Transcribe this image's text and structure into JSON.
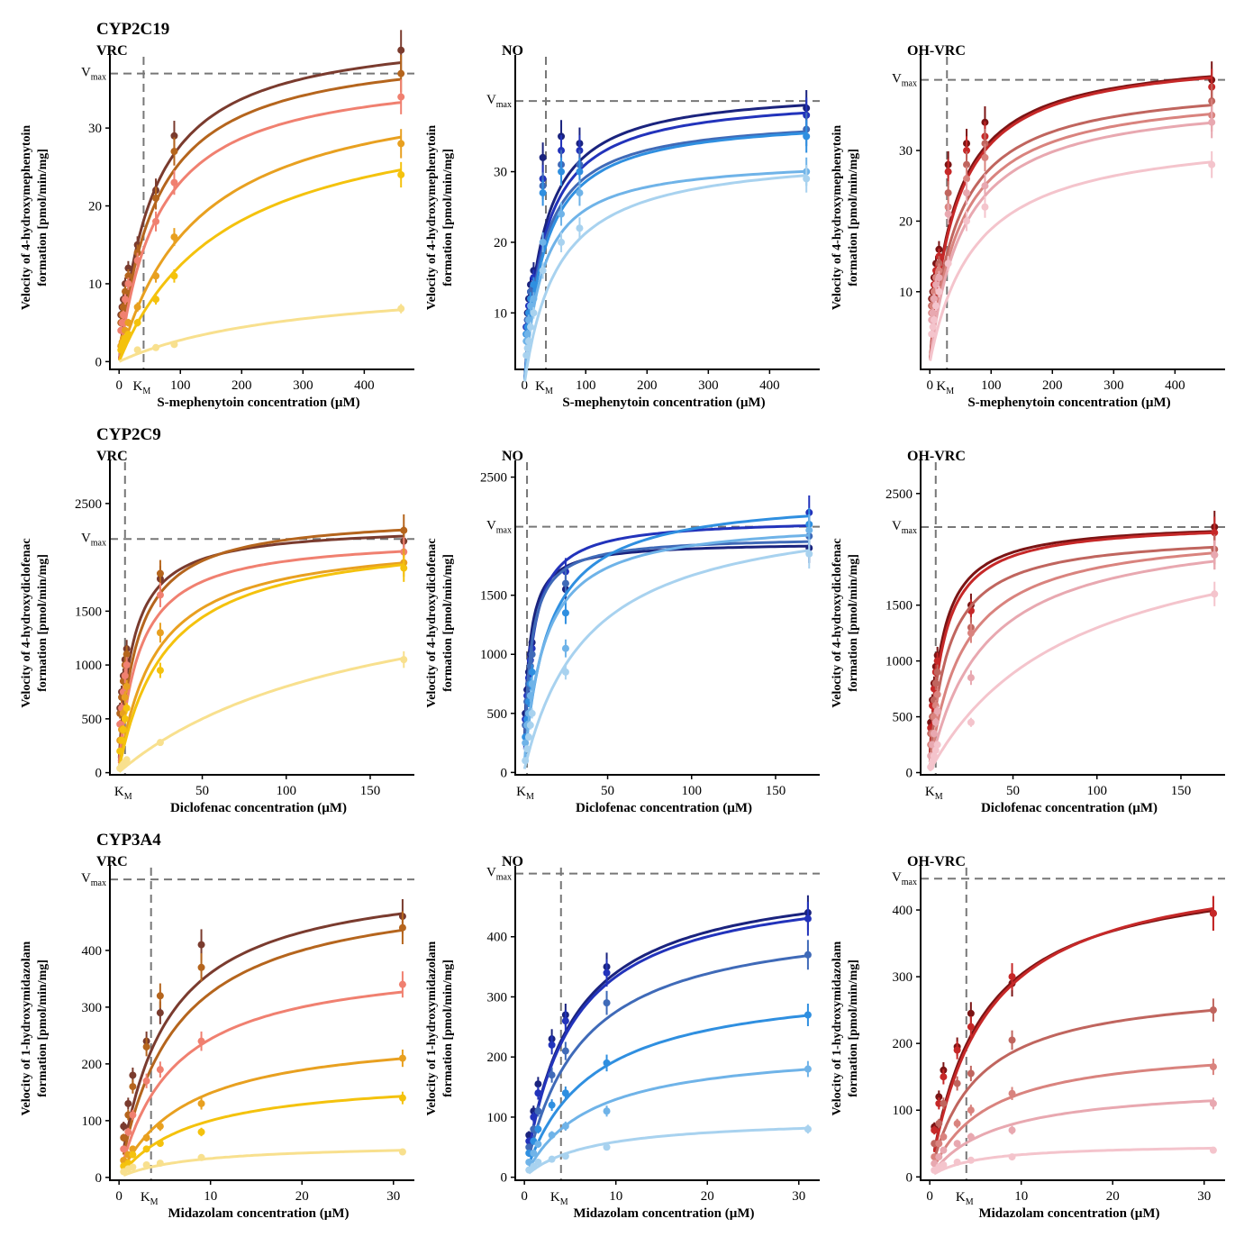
{
  "figure": {
    "row_titles": [
      "CYP2C19",
      "CYP2C9",
      "CYP3A4"
    ],
    "vmax_label": {
      "main": "V",
      "sub": "max"
    },
    "km_label": {
      "main": "K",
      "sub": "M"
    }
  },
  "colors": {
    "VRC": [
      "#7a3b2e",
      "#b5651d",
      "#f08070",
      "#e8a020",
      "#f4c20d",
      "#f8e08e"
    ],
    "NO": [
      "#1a237e",
      "#2233bb",
      "#3f6ab8",
      "#2f8fe0",
      "#6fb3e8",
      "#a8d2ef"
    ],
    "OH-VRC": [
      "#7b1414",
      "#c62828",
      "#c0655e",
      "#d9837e",
      "#e8a8b0",
      "#f4c4cc"
    ]
  },
  "chart_data": [
    {
      "type": "line",
      "id": "c19-vrc",
      "row": 0,
      "col": 0,
      "title": "VRC",
      "inhibitor": "VRC",
      "xlabel": "S-mephenytoin concentration (µM)",
      "ylabel": [
        "Velocity of 4-hydroxymephenytoin",
        "formation [pmol/min/mg]"
      ],
      "xlim": [
        -15,
        470
      ],
      "ylim": [
        -1,
        38
      ],
      "xticks": [
        0,
        100,
        200,
        300,
        400
      ],
      "yticks": [
        0,
        10,
        20,
        30
      ],
      "vmax": 37,
      "km": 40,
      "x": [
        3,
        5,
        7,
        10,
        15,
        30,
        60,
        90,
        460
      ],
      "series": [
        {
          "vmax": 43,
          "km": 55,
          "values": [
            6,
            7,
            8,
            10,
            12,
            15,
            22,
            29,
            40
          ]
        },
        {
          "vmax": 41,
          "km": 60,
          "values": [
            5,
            6,
            7,
            9,
            11,
            14,
            21,
            27,
            37
          ]
        },
        {
          "vmax": 38,
          "km": 65,
          "values": [
            4,
            5,
            6,
            8,
            10,
            13,
            18,
            23,
            34
          ]
        },
        {
          "vmax": 37,
          "km": 130,
          "values": [
            2,
            2.5,
            3,
            4,
            5,
            7,
            11,
            16,
            28
          ]
        },
        {
          "vmax": 34,
          "km": 175,
          "values": [
            1.5,
            2,
            2.5,
            3,
            3.5,
            5,
            8,
            11,
            24
          ]
        },
        {
          "vmax": 11,
          "km": 300,
          "values": [
            null,
            null,
            null,
            null,
            null,
            1.5,
            1.8,
            2.2,
            6.8
          ]
        }
      ]
    },
    {
      "type": "line",
      "id": "c19-no",
      "row": 0,
      "col": 1,
      "title": "NO",
      "inhibitor": "NO",
      "xlabel": "S-mephenytoin concentration (µM)",
      "ylabel": [
        "Velocity of 4-hydroxymephenytoin",
        "formation [pmol/min/mg]"
      ],
      "xlim": [
        -15,
        470
      ],
      "ylim": [
        2,
        45
      ],
      "xticks": [
        0,
        100,
        200,
        300,
        400
      ],
      "yticks": [
        10,
        20,
        30
      ],
      "vmax": 40,
      "km": 35,
      "x": [
        3,
        5,
        7,
        10,
        15,
        30,
        60,
        90,
        460
      ],
      "series": [
        {
          "vmax": 42,
          "km": 30,
          "values": [
            8,
            10,
            12,
            14,
            16,
            32,
            35,
            34,
            39
          ]
        },
        {
          "vmax": 41,
          "km": 32,
          "values": [
            8,
            9,
            11,
            13,
            15,
            29,
            33,
            33,
            38
          ]
        },
        {
          "vmax": 38,
          "km": 30,
          "values": [
            7,
            9,
            10,
            13,
            14,
            28,
            31,
            31,
            36
          ]
        },
        {
          "vmax": 38,
          "km": 33,
          "values": [
            7,
            8,
            10,
            12,
            14,
            27,
            30,
            30,
            35
          ]
        },
        {
          "vmax": 32,
          "km": 30,
          "values": [
            6,
            7,
            9,
            11,
            12,
            20,
            24,
            27,
            30
          ]
        },
        {
          "vmax": 33,
          "km": 55,
          "values": [
            4,
            5,
            6,
            8,
            10,
            16,
            20,
            22,
            29
          ]
        }
      ]
    },
    {
      "type": "line",
      "id": "c19-ohvrc",
      "row": 0,
      "col": 2,
      "title": "OH-VRC",
      "inhibitor": "OH-VRC",
      "xlabel": "S-mephenytoin concentration (µM)",
      "ylabel": [
        "Velocity of 4-hydroxymephenytoin",
        "formation [pmol/min/mg]"
      ],
      "xlim": [
        -15,
        470
      ],
      "ylim": [
        -1,
        42
      ],
      "xticks": [
        0,
        100,
        200,
        300,
        400
      ],
      "yticks": [
        10,
        20,
        30
      ],
      "vmax": 40,
      "km": 28,
      "x": [
        3,
        5,
        7,
        10,
        15,
        30,
        60,
        90,
        460
      ],
      "series": [
        {
          "vmax": 44,
          "km": 40,
          "values": [
            9,
            10,
            12,
            14,
            16,
            28,
            31,
            34,
            40
          ]
        },
        {
          "vmax": 44,
          "km": 42,
          "values": [
            8,
            9,
            11,
            13,
            15,
            27,
            30,
            32,
            39
          ]
        },
        {
          "vmax": 40,
          "km": 45,
          "values": [
            8,
            9,
            10,
            12,
            14,
            24,
            28,
            31,
            37
          ]
        },
        {
          "vmax": 39,
          "km": 50,
          "values": [
            7,
            8,
            10,
            12,
            13,
            22,
            26,
            29,
            35
          ]
        },
        {
          "vmax": 38,
          "km": 55,
          "values": [
            6,
            7,
            9,
            11,
            12,
            21,
            24,
            25,
            34
          ]
        },
        {
          "vmax": 33,
          "km": 75,
          "values": [
            4,
            5,
            6,
            8,
            10,
            14,
            20,
            22,
            28
          ]
        }
      ]
    },
    {
      "type": "line",
      "id": "c9-vrc",
      "row": 1,
      "col": 0,
      "title": "VRC",
      "inhibitor": "VRC",
      "xlabel": "Diclofenac concentration (µM)",
      "ylabel": [
        "Velocity of 4-hydroxydiclofenac",
        "formation [pmol/min/mg]"
      ],
      "xlim": [
        -5,
        172
      ],
      "ylim": [
        -20,
        2800
      ],
      "xticks": [
        50,
        100,
        150
      ],
      "yticks": [
        0,
        500,
        1000,
        1500,
        2500
      ],
      "vmax": 2170,
      "km": 4,
      "x": [
        1,
        2,
        3,
        4,
        5,
        25,
        170
      ],
      "series": [
        {
          "vmax": 2300,
          "km": 8,
          "values": [
            600,
            750,
            900,
            1050,
            1150,
            1800,
            2150
          ]
        },
        {
          "vmax": 2400,
          "km": 11,
          "values": [
            550,
            700,
            850,
            1000,
            1100,
            1850,
            2250
          ]
        },
        {
          "vmax": 2200,
          "km": 12,
          "values": [
            450,
            600,
            750,
            900,
            1000,
            1650,
            2050
          ]
        },
        {
          "vmax": 2200,
          "km": 22,
          "values": [
            300,
            400,
            550,
            700,
            800,
            1300,
            1950
          ]
        },
        {
          "vmax": 2250,
          "km": 28,
          "values": [
            200,
            300,
            400,
            500,
            600,
            950,
            1900
          ]
        },
        {
          "vmax": 2000,
          "km": 150,
          "values": [
            40,
            60,
            80,
            100,
            120,
            280,
            1050
          ]
        }
      ]
    },
    {
      "type": "line",
      "id": "c9-no",
      "row": 1,
      "col": 1,
      "title": "NO",
      "inhibitor": "NO",
      "xlabel": "Diclofenac concentration (µM)",
      "ylabel": [
        "Velocity of 4-hydroxydiclofenac",
        "formation [pmol/min/mg]"
      ],
      "xlim": [
        -5,
        172
      ],
      "ylim": [
        -20,
        2550
      ],
      "xticks": [
        50,
        100,
        150
      ],
      "yticks": [
        0,
        500,
        1000,
        1500,
        2500
      ],
      "vmax": 2080,
      "km": 2,
      "x": [
        1,
        2,
        3,
        4,
        5,
        25,
        170
      ],
      "series": [
        {
          "vmax": 1950,
          "km": 3,
          "values": [
            500,
            700,
            850,
            1000,
            1100,
            1550,
            1900
          ]
        },
        {
          "vmax": 2150,
          "km": 5,
          "values": [
            450,
            650,
            800,
            950,
            1050,
            1700,
            2200
          ]
        },
        {
          "vmax": 2000,
          "km": 4,
          "values": [
            400,
            600,
            750,
            900,
            1000,
            1600,
            2000
          ]
        },
        {
          "vmax": 2350,
          "km": 14,
          "values": [
            300,
            450,
            600,
            750,
            850,
            1350,
            2100
          ]
        },
        {
          "vmax": 2150,
          "km": 12,
          "values": [
            250,
            400,
            500,
            650,
            750,
            1050,
            2050
          ]
        },
        {
          "vmax": 2300,
          "km": 38,
          "values": [
            100,
            200,
            300,
            400,
            500,
            850,
            1850
          ]
        }
      ]
    },
    {
      "type": "line",
      "id": "c9-ohvrc",
      "row": 1,
      "col": 2,
      "title": "OH-VRC",
      "inhibitor": "OH-VRC",
      "xlabel": "Diclofenac concentration (µM)",
      "ylabel": [
        "Velocity of 4-hydroxydiclofenac",
        "formation [pmol/min/mg]"
      ],
      "xlim": [
        -5,
        172
      ],
      "ylim": [
        -20,
        2700
      ],
      "xticks": [
        50,
        100,
        150
      ],
      "yticks": [
        0,
        500,
        1000,
        1500,
        2500
      ],
      "vmax": 2200,
      "km": 4,
      "x": [
        1,
        2,
        3,
        4,
        5,
        25,
        170
      ],
      "series": [
        {
          "vmax": 2250,
          "km": 7,
          "values": [
            450,
            650,
            800,
            950,
            1050,
            1500,
            2200
          ]
        },
        {
          "vmax": 2250,
          "km": 8,
          "values": [
            400,
            600,
            750,
            900,
            1000,
            1450,
            2150
          ]
        },
        {
          "vmax": 2150,
          "km": 11,
          "values": [
            350,
            500,
            650,
            800,
            900,
            1300,
            2000
          ]
        },
        {
          "vmax": 2200,
          "km": 20,
          "values": [
            250,
            350,
            500,
            600,
            700,
            1250,
            1950
          ]
        },
        {
          "vmax": 2250,
          "km": 32,
          "values": [
            150,
            250,
            350,
            450,
            550,
            850,
            1950
          ]
        },
        {
          "vmax": 2400,
          "km": 85,
          "values": [
            50,
            100,
            150,
            200,
            250,
            450,
            1600
          ]
        }
      ]
    },
    {
      "type": "line",
      "id": "c3a4-vrc",
      "row": 2,
      "col": 0,
      "title": "VRC",
      "inhibitor": "VRC",
      "xlabel": "Midazolam concentration (µM)",
      "ylabel": [
        "Velocity of 1-hydroxymidazolam",
        "formation [pmol/min/mg]"
      ],
      "xlim": [
        -1,
        31.5
      ],
      "ylim": [
        -5,
        530
      ],
      "xticks": [
        0,
        10,
        20,
        30
      ],
      "yticks": [
        0,
        100,
        200,
        300,
        400
      ],
      "vmax": 525,
      "km": 3.5,
      "x": [
        0.5,
        1,
        1.5,
        3,
        4.5,
        9,
        31
      ],
      "series": [
        {
          "vmax": 540,
          "km": 5,
          "values": [
            90,
            130,
            180,
            240,
            290,
            410,
            460
          ]
        },
        {
          "vmax": 520,
          "km": 6,
          "values": [
            70,
            110,
            160,
            230,
            320,
            370,
            440
          ]
        },
        {
          "vmax": 390,
          "km": 6,
          "values": [
            50,
            80,
            110,
            170,
            190,
            240,
            340
          ]
        },
        {
          "vmax": 260,
          "km": 7.5,
          "values": [
            30,
            40,
            50,
            70,
            90,
            130,
            210
          ]
        },
        {
          "vmax": 180,
          "km": 8,
          "values": [
            20,
            25,
            40,
            50,
            60,
            80,
            140
          ]
        },
        {
          "vmax": 60,
          "km": 8,
          "values": [
            10,
            15,
            18,
            22,
            25,
            35,
            45
          ]
        }
      ]
    },
    {
      "type": "line",
      "id": "c3a4-no",
      "row": 2,
      "col": 1,
      "title": "NO",
      "inhibitor": "NO",
      "xlabel": "Midazolam concentration (µM)",
      "ylabel": [
        "Velocity of 1-hydroxymidazolam",
        "formation [pmol/min/mg]"
      ],
      "xlim": [
        -1,
        31.5
      ],
      "ylim": [
        -5,
        500
      ],
      "xticks": [
        0,
        10,
        20,
        30
      ],
      "yticks": [
        0,
        100,
        200,
        300,
        400
      ],
      "vmax": 505,
      "km": 4,
      "x": [
        0.5,
        1,
        1.5,
        3,
        4.5,
        9,
        31
      ],
      "series": [
        {
          "vmax": 510,
          "km": 5,
          "values": [
            70,
            110,
            155,
            230,
            270,
            350,
            440
          ]
        },
        {
          "vmax": 500,
          "km": 5,
          "values": [
            60,
            100,
            140,
            220,
            260,
            340,
            430
          ]
        },
        {
          "vmax": 440,
          "km": 6,
          "values": [
            50,
            80,
            110,
            170,
            210,
            290,
            370
          ]
        },
        {
          "vmax": 330,
          "km": 7,
          "values": [
            40,
            60,
            80,
            120,
            140,
            190,
            270
          ]
        },
        {
          "vmax": 220,
          "km": 7,
          "values": [
            25,
            40,
            55,
            70,
            85,
            110,
            180
          ]
        },
        {
          "vmax": 100,
          "km": 7,
          "values": [
            12,
            18,
            25,
            30,
            35,
            50,
            80
          ]
        }
      ]
    },
    {
      "type": "line",
      "id": "c3a4-ohvrc",
      "row": 2,
      "col": 2,
      "title": "OH-VRC",
      "inhibitor": "OH-VRC",
      "xlabel": "Midazolam concentration (µM)",
      "ylabel": [
        "Velocity of 1-hydroxymidazolam",
        "formation [pmol/min/mg]"
      ],
      "xlim": [
        -1,
        31.5
      ],
      "ylim": [
        -5,
        450
      ],
      "xticks": [
        0,
        10,
        20,
        30
      ],
      "yticks": [
        0,
        100,
        200,
        300,
        400
      ],
      "vmax": 447,
      "km": 4,
      "x": [
        0.5,
        1,
        1.5,
        3,
        4.5,
        9,
        31
      ],
      "series": [
        {
          "vmax": 470,
          "km": 5.5,
          "values": [
            75,
            120,
            160,
            195,
            245,
            290,
            395
          ]
        },
        {
          "vmax": 480,
          "km": 6,
          "values": [
            70,
            110,
            150,
            190,
            225,
            300,
            395
          ]
        },
        {
          "vmax": 290,
          "km": 5,
          "values": [
            50,
            80,
            110,
            140,
            155,
            205,
            250
          ]
        },
        {
          "vmax": 200,
          "km": 6,
          "values": [
            30,
            50,
            60,
            80,
            100,
            125,
            165
          ]
        },
        {
          "vmax": 140,
          "km": 7,
          "values": [
            20,
            30,
            40,
            50,
            60,
            70,
            110
          ]
        },
        {
          "vmax": 50,
          "km": 5,
          "values": [
            10,
            15,
            18,
            22,
            25,
            30,
            40
          ]
        }
      ]
    }
  ]
}
